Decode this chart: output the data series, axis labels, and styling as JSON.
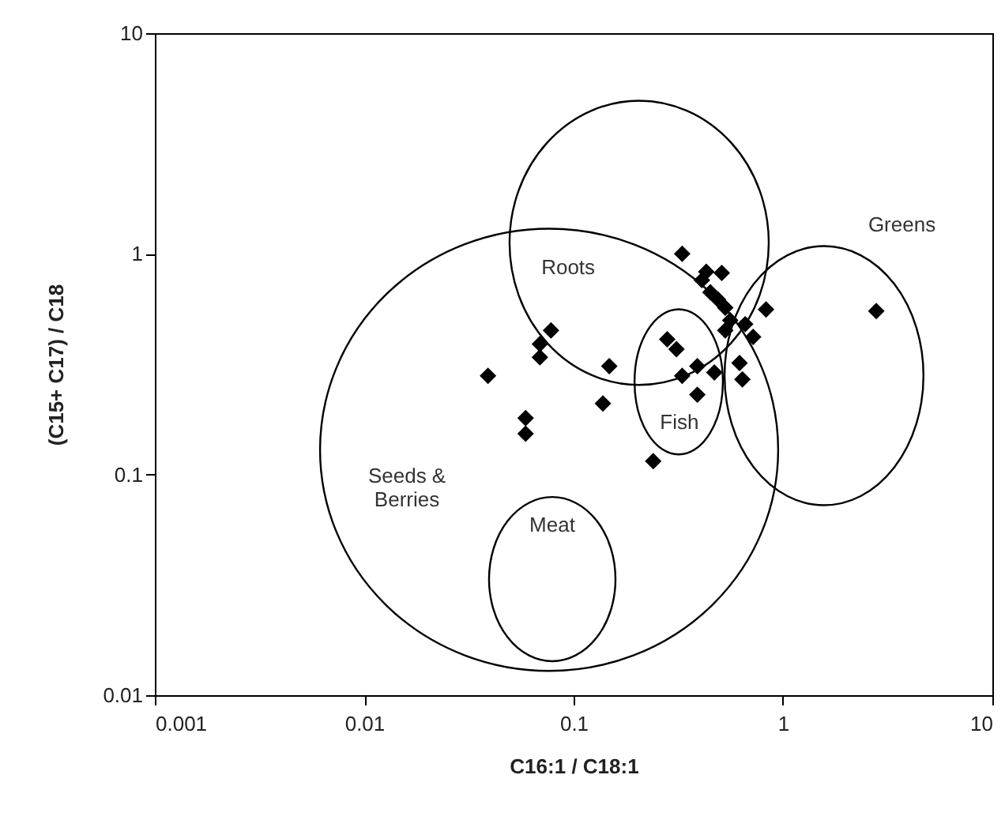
{
  "chart_data": {
    "type": "scatter",
    "xlabel": "C16:1 / C18:1",
    "ylabel": "(C15+ C17) / C18",
    "log": "xy",
    "grid": false,
    "legend": false,
    "marker": "diamond",
    "xlim": [
      0.001,
      10
    ],
    "ylim": [
      0.01,
      10
    ],
    "xticks": [
      0.001,
      0.01,
      0.1,
      1,
      10
    ],
    "yticks": [
      0.01,
      0.1,
      1,
      10
    ],
    "series": [
      {
        "color": "#000000",
        "x": [
          0.078,
          0.069,
          0.069,
          0.039,
          0.148,
          0.138,
          0.059,
          0.059,
          0.33,
          0.43,
          0.51,
          0.41,
          0.45,
          0.49,
          0.53,
          0.83,
          0.56,
          0.66,
          0.72,
          0.53,
          0.28,
          0.31,
          2.79,
          0.62,
          0.39,
          0.33,
          0.47,
          0.64,
          0.39,
          0.24
        ],
        "values": [
          0.45,
          0.39,
          0.34,
          0.28,
          0.31,
          0.21,
          0.18,
          0.153,
          1.0,
          0.83,
          0.82,
          0.76,
          0.67,
          0.62,
          0.57,
          0.56,
          0.5,
          0.48,
          0.42,
          0.45,
          0.41,
          0.37,
          0.55,
          0.32,
          0.31,
          0.28,
          0.29,
          0.27,
          0.23,
          0.115
        ]
      }
    ],
    "annotations": [
      "Roots",
      "Greens",
      "Fish",
      "Meat",
      "Seeds &\nBerries"
    ]
  }
}
